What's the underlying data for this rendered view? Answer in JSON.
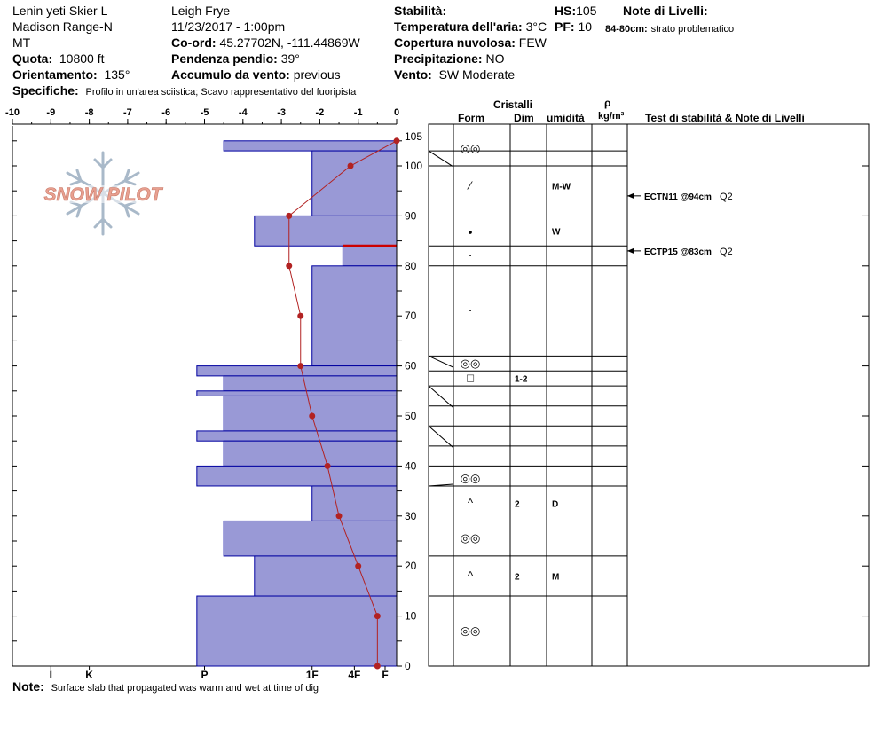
{
  "header": {
    "site": "Lenin yeti Skier L",
    "range": "Madison Range-N",
    "state": "MT",
    "observer": "Leigh Frye",
    "datetime": "11/23/2017 - 1:00pm",
    "elevation_label": "Quota:",
    "elevation": "10800 ft",
    "aspect_label": "Orientamento:",
    "aspect": "135°",
    "coord_label": "Co-ord:",
    "coord": "45.27702N, -111.44869W",
    "slope_label": "Pendenza pendio:",
    "slope": "39°",
    "wind_load_label": "Accumulo da vento:",
    "wind_load": "previous",
    "specifics_label": "Specifiche:",
    "specifics": "Profilo in un'area sciistica; Scavo rappresentativo del fuoripista",
    "stability_label": "Stabilità:",
    "air_temp_label": "Temperatura dell'aria:",
    "air_temp": "3°C",
    "cloud_label": "Copertura nuvolosa:",
    "cloud": "FEW",
    "precip_label": "Precipitazione:",
    "precip": "NO",
    "wind_label": "Vento:",
    "wind": "SW Moderate",
    "hs_label": "HS:",
    "hs": "105",
    "pf_label": "PF:",
    "pf": "10",
    "layer_notes_label": "Note di Livelli:",
    "layer_note_range": "84-80cm:",
    "layer_note_text": "strato problematico"
  },
  "logo_text": "SNOW PILOT",
  "footer": {
    "note_label": "Note:",
    "note": "Surface slab that propagated was warm and wet at time of dig"
  },
  "table_headers": {
    "crystals": "Cristalli",
    "form": "Form",
    "size": "Dim",
    "moisture": "umidità",
    "rho": "ρ",
    "density_unit": "kg/m³",
    "tests": "Test di stabilità & Note di Livelli"
  },
  "colors": {
    "hardness_fill": "#9999d6",
    "hardness_stroke": "#0000a0",
    "temperature_line": "#b22222",
    "weak_layer": "#cc0000",
    "logo": "#e8a090",
    "snowflake": "#a9b9c9"
  },
  "chart_data": {
    "type": "bar",
    "title": "",
    "ylabel": "",
    "temperature_axis": {
      "ticks": [
        "-10",
        "-9",
        "-8",
        "-7",
        "-6",
        "-5",
        "-4",
        "-3",
        "-2",
        "-1",
        "0"
      ],
      "range": [
        -10,
        0
      ]
    },
    "height_axis": {
      "ticks": [
        "0",
        "10",
        "20",
        "30",
        "40",
        "50",
        "60",
        "70",
        "80",
        "90",
        "100",
        "105"
      ],
      "range": [
        0,
        105
      ]
    },
    "hardness_axis": {
      "labels": [
        "I",
        "K",
        "P",
        "1F",
        "4F",
        "F"
      ]
    },
    "hardness_profile": [
      {
        "bottom": 103,
        "top": 105,
        "temp_units": 4.5
      },
      {
        "bottom": 90,
        "top": 103,
        "temp_units": 2.2
      },
      {
        "bottom": 84,
        "top": 90,
        "temp_units": 3.7
      },
      {
        "bottom": 80,
        "top": 84,
        "temp_units": 1.4
      },
      {
        "bottom": 60,
        "top": 80,
        "temp_units": 2.2
      },
      {
        "bottom": 58,
        "top": 60,
        "temp_units": 5.2
      },
      {
        "bottom": 55,
        "top": 58,
        "temp_units": 4.5
      },
      {
        "bottom": 54,
        "top": 55,
        "temp_units": 5.2
      },
      {
        "bottom": 47,
        "top": 54,
        "temp_units": 4.5
      },
      {
        "bottom": 45,
        "top": 47,
        "temp_units": 5.2
      },
      {
        "bottom": 40,
        "top": 45,
        "temp_units": 4.5
      },
      {
        "bottom": 36,
        "top": 40,
        "temp_units": 5.2
      },
      {
        "bottom": 29,
        "top": 36,
        "temp_units": 2.2
      },
      {
        "bottom": 22,
        "top": 29,
        "temp_units": 4.5
      },
      {
        "bottom": 14,
        "top": 22,
        "temp_units": 3.7
      },
      {
        "bottom": 0,
        "top": 14,
        "temp_units": 5.2
      }
    ],
    "weak_layer_cm": 84,
    "temperature_profile": [
      {
        "height": 105,
        "temp": 0
      },
      {
        "height": 100,
        "temp": -1.2
      },
      {
        "height": 90,
        "temp": -2.8
      },
      {
        "height": 80,
        "temp": -2.8
      },
      {
        "height": 70,
        "temp": -2.5
      },
      {
        "height": 60,
        "temp": -2.5
      },
      {
        "height": 50,
        "temp": -2.2
      },
      {
        "height": 40,
        "temp": -1.8
      },
      {
        "height": 30,
        "temp": -1.5
      },
      {
        "height": 20,
        "temp": -1.0
      },
      {
        "height": 10,
        "temp": -0.5
      },
      {
        "height": 0,
        "temp": -0.5
      }
    ]
  },
  "layer_boundaries": [
    103,
    100,
    84,
    80,
    62,
    59,
    56,
    52,
    48,
    44,
    40,
    36,
    29,
    22,
    14,
    0
  ],
  "layers": [
    {
      "height": 103.5,
      "form": "◎◎",
      "size": "",
      "moisture": ""
    },
    {
      "height": 96,
      "form": "⁄",
      "size": "",
      "moisture": "M-W"
    },
    {
      "height": 87,
      "form": "●",
      "size": "",
      "moisture": "W"
    },
    {
      "height": 82,
      "form": "·",
      "size": "",
      "moisture": ""
    },
    {
      "height": 71,
      "form": "·",
      "size": "",
      "moisture": ""
    },
    {
      "height": 60.5,
      "form": "◎◎",
      "size": "",
      "moisture": ""
    },
    {
      "height": 57.5,
      "form": "□",
      "size": "1-2",
      "moisture": ""
    },
    {
      "height": 37.5,
      "form": "◎◎",
      "size": "",
      "moisture": ""
    },
    {
      "height": 32.5,
      "form": "^",
      "size": "2",
      "moisture": "D"
    },
    {
      "height": 25.5,
      "form": "◎◎",
      "size": "",
      "moisture": ""
    },
    {
      "height": 18,
      "form": "^",
      "size": "2",
      "moisture": "M"
    },
    {
      "height": 7,
      "form": "◎◎",
      "size": "",
      "moisture": ""
    }
  ],
  "stability_tests": [
    {
      "height": 94,
      "test": "ECTN11 @94cm",
      "quality": "Q2"
    },
    {
      "height": 83,
      "test": "ECTP15 @83cm",
      "quality": "Q2"
    }
  ]
}
